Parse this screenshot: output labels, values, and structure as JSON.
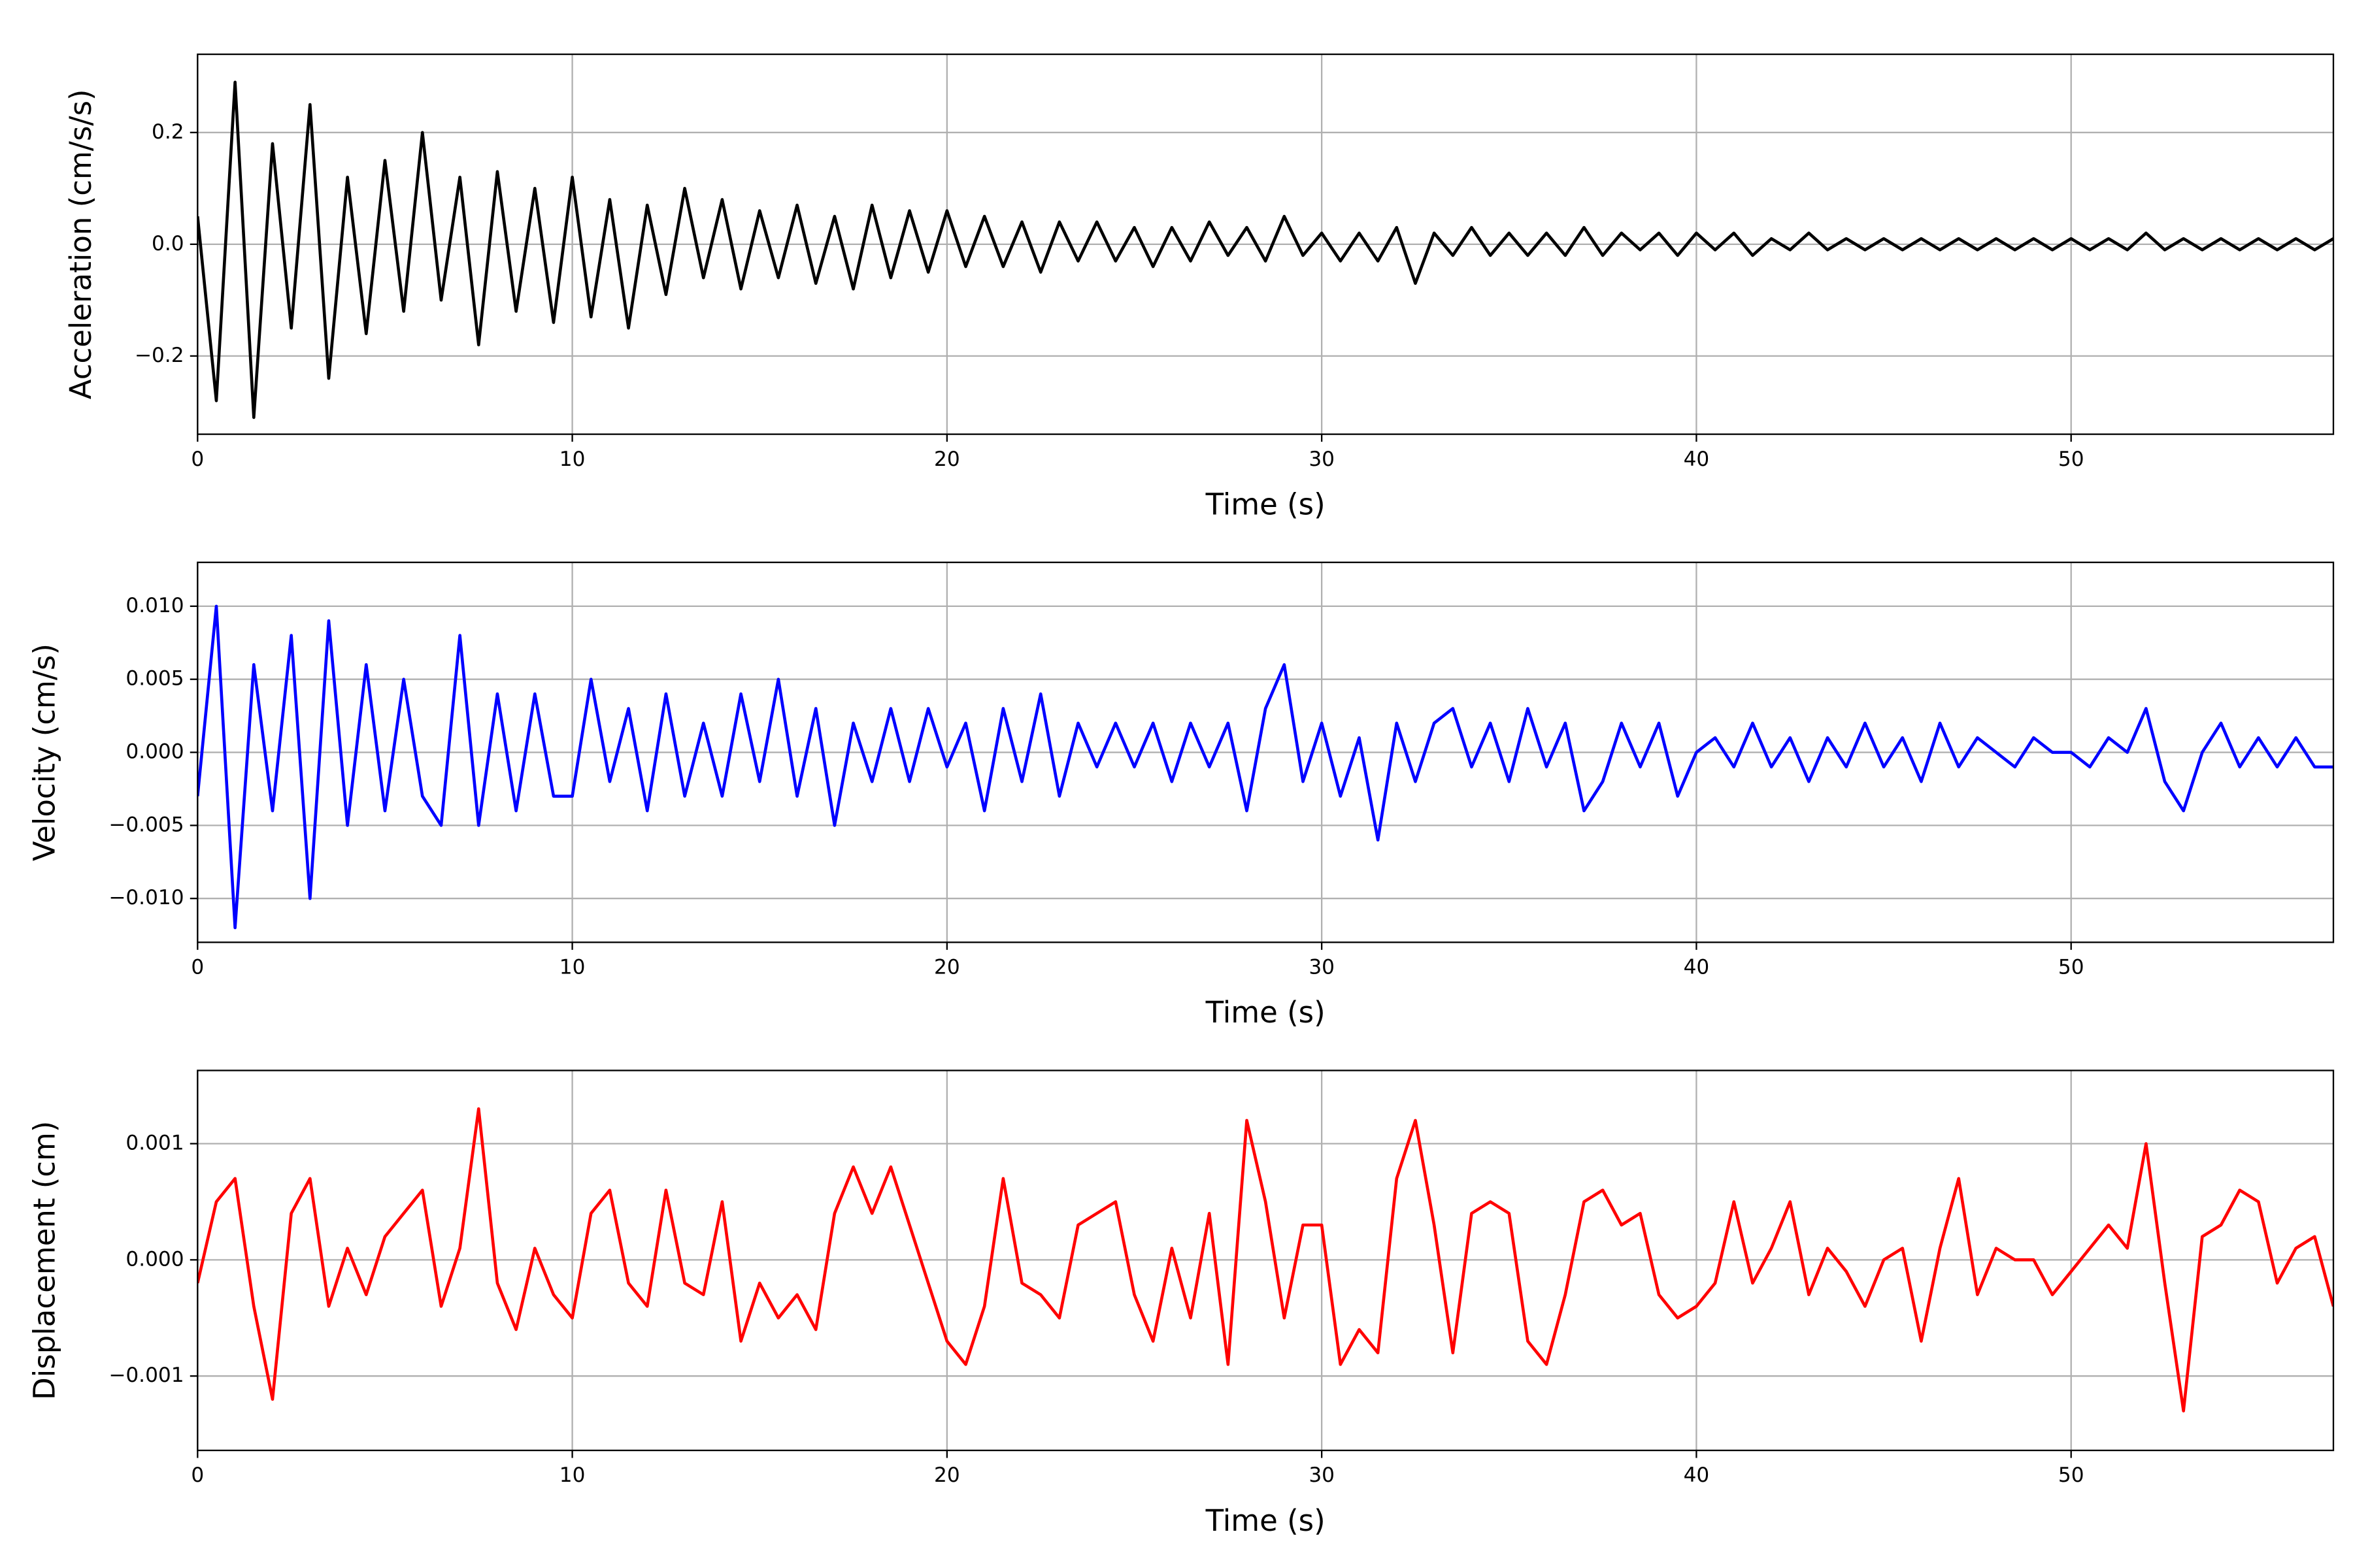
{
  "chart_data": [
    {
      "type": "line",
      "color": "#000000",
      "xlabel": "Time (s)",
      "ylabel": "Acceleration (cm/s/s)",
      "grid": true,
      "xlim": [
        0,
        57
      ],
      "xticks": [
        0,
        10,
        20,
        30,
        40,
        50
      ],
      "ylim": [
        -0.34,
        0.34
      ],
      "yticks": [
        {
          "value": -0.2,
          "label": "−0.2"
        },
        {
          "value": 0,
          "label": "0.0"
        },
        0.2
      ],
      "x": [
        0,
        0.5,
        1,
        1.5,
        2,
        2.5,
        3,
        3.5,
        4,
        4.5,
        5,
        5.5,
        6,
        6.5,
        7,
        7.5,
        8,
        8.5,
        9,
        9.5,
        10,
        10.5,
        11,
        11.5,
        12,
        12.5,
        13,
        13.5,
        14,
        14.5,
        15,
        15.5,
        16,
        16.5,
        17,
        17.5,
        18,
        18.5,
        19,
        19.5,
        20,
        20.5,
        21,
        21.5,
        22,
        22.5,
        23,
        23.5,
        24,
        24.5,
        25,
        25.5,
        26,
        26.5,
        27,
        27.5,
        28,
        28.5,
        29,
        29.5,
        30,
        30.5,
        31,
        31.5,
        32,
        32.5,
        33,
        33.5,
        34,
        34.5,
        35,
        35.5,
        36,
        36.5,
        37,
        37.5,
        38,
        38.5,
        39,
        39.5,
        40,
        40.5,
        41,
        41.5,
        42,
        42.5,
        43,
        43.5,
        44,
        44.5,
        45,
        45.5,
        46,
        46.5,
        47,
        47.5,
        48,
        48.5,
        49,
        49.5,
        50,
        50.5,
        51,
        51.5,
        52,
        52.5,
        53,
        53.5,
        54,
        54.5,
        55,
        55.5,
        56,
        56.5,
        57
      ],
      "values": [
        0.05,
        -0.28,
        0.29,
        -0.31,
        0.18,
        -0.15,
        0.25,
        -0.24,
        0.12,
        -0.16,
        0.15,
        -0.12,
        0.2,
        -0.1,
        0.12,
        -0.18,
        0.13,
        -0.12,
        0.1,
        -0.14,
        0.12,
        -0.13,
        0.08,
        -0.15,
        0.07,
        -0.09,
        0.1,
        -0.06,
        0.08,
        -0.08,
        0.06,
        -0.06,
        0.07,
        -0.07,
        0.05,
        -0.08,
        0.07,
        -0.06,
        0.06,
        -0.05,
        0.06,
        -0.04,
        0.05,
        -0.04,
        0.04,
        -0.05,
        0.04,
        -0.03,
        0.04,
        -0.03,
        0.03,
        -0.04,
        0.03,
        -0.03,
        0.04,
        -0.02,
        0.03,
        -0.03,
        0.05,
        -0.02,
        0.02,
        -0.03,
        0.02,
        -0.03,
        0.03,
        -0.07,
        0.02,
        -0.02,
        0.03,
        -0.02,
        0.02,
        -0.02,
        0.02,
        -0.02,
        0.03,
        -0.02,
        0.02,
        -0.01,
        0.02,
        -0.02,
        0.02,
        -0.01,
        0.02,
        -0.02,
        0.01,
        -0.01,
        0.02,
        -0.01,
        0.01,
        -0.01,
        0.01,
        -0.01,
        0.01,
        -0.01,
        0.01,
        -0.01,
        0.01,
        -0.01,
        0.01,
        -0.01,
        0.01,
        -0.01,
        0.01,
        -0.01,
        0.02,
        -0.01,
        0.01,
        -0.01,
        0.01,
        -0.01,
        0.01,
        -0.01,
        0.01,
        -0.01,
        0.01
      ]
    },
    {
      "type": "line",
      "color": "#0000ff",
      "xlabel": "Time (s)",
      "ylabel": "Velocity (cm/s)",
      "grid": true,
      "xlim": [
        0,
        57
      ],
      "xticks": [
        0,
        10,
        20,
        30,
        40,
        50
      ],
      "ylim": [
        -0.013,
        0.013
      ],
      "yticks": [
        {
          "value": -0.01,
          "label": "−0.010"
        },
        {
          "value": -0.005,
          "label": "−0.005"
        },
        {
          "value": 0,
          "label": "0.000"
        },
        {
          "value": 0.005,
          "label": "0.005"
        },
        {
          "value": 0.01,
          "label": "0.010"
        }
      ],
      "x": [
        0,
        0.5,
        1,
        1.5,
        2,
        2.5,
        3,
        3.5,
        4,
        4.5,
        5,
        5.5,
        6,
        6.5,
        7,
        7.5,
        8,
        8.5,
        9,
        9.5,
        10,
        10.5,
        11,
        11.5,
        12,
        12.5,
        13,
        13.5,
        14,
        14.5,
        15,
        15.5,
        16,
        16.5,
        17,
        17.5,
        18,
        18.5,
        19,
        19.5,
        20,
        20.5,
        21,
        21.5,
        22,
        22.5,
        23,
        23.5,
        24,
        24.5,
        25,
        25.5,
        26,
        26.5,
        27,
        27.5,
        28,
        28.5,
        29,
        29.5,
        30,
        30.5,
        31,
        31.5,
        32,
        32.5,
        33,
        33.5,
        34,
        34.5,
        35,
        35.5,
        36,
        36.5,
        37,
        37.5,
        38,
        38.5,
        39,
        39.5,
        40,
        40.5,
        41,
        41.5,
        42,
        42.5,
        43,
        43.5,
        44,
        44.5,
        45,
        45.5,
        46,
        46.5,
        47,
        47.5,
        48,
        48.5,
        49,
        49.5,
        50,
        50.5,
        51,
        51.5,
        52,
        52.5,
        53,
        53.5,
        54,
        54.5,
        55,
        55.5,
        56,
        56.5,
        57
      ],
      "values": [
        -0.003,
        0.01,
        -0.012,
        0.006,
        -0.004,
        0.008,
        -0.01,
        0.009,
        -0.005,
        0.006,
        -0.004,
        0.005,
        -0.003,
        -0.005,
        0.008,
        -0.005,
        0.004,
        -0.004,
        0.004,
        -0.003,
        -0.003,
        0.005,
        -0.002,
        0.003,
        -0.004,
        0.004,
        -0.003,
        0.002,
        -0.003,
        0.004,
        -0.002,
        0.005,
        -0.003,
        0.003,
        -0.005,
        0.002,
        -0.002,
        0.003,
        -0.002,
        0.003,
        -0.001,
        0.002,
        -0.004,
        0.003,
        -0.002,
        0.004,
        -0.003,
        0.002,
        -0.001,
        0.002,
        -0.001,
        0.002,
        -0.002,
        0.002,
        -0.001,
        0.002,
        -0.004,
        0.003,
        0.006,
        -0.002,
        0.002,
        -0.003,
        0.001,
        -0.006,
        0.002,
        -0.002,
        0.002,
        0.003,
        -0.001,
        0.002,
        -0.002,
        0.003,
        -0.001,
        0.002,
        -0.004,
        -0.002,
        0.002,
        -0.001,
        0.002,
        -0.003,
        0,
        0.001,
        -0.001,
        0.002,
        -0.001,
        0.001,
        -0.002,
        0.001,
        -0.001,
        0.002,
        -0.001,
        0.001,
        -0.002,
        0.002,
        -0.001,
        0.001,
        0,
        -0.001,
        0.001,
        0,
        0,
        -0.001,
        0.001,
        0,
        0.003,
        -0.002,
        -0.004,
        0,
        0.002,
        -0.001,
        0.001,
        -0.001,
        0.001,
        -0.001,
        -0.001
      ]
    },
    {
      "type": "line",
      "color": "#ff0000",
      "xlabel": "Time (s)",
      "ylabel": "Displacement (cm)",
      "grid": true,
      "xlim": [
        0,
        57
      ],
      "xticks": [
        0,
        10,
        20,
        30,
        40,
        50
      ],
      "ylim": [
        -0.00164,
        0.00163
      ],
      "yticks": [
        {
          "value": -0.001,
          "label": "−0.001"
        },
        {
          "value": 0,
          "label": "0.000"
        },
        {
          "value": 0.001,
          "label": "0.001"
        }
      ],
      "x": [
        0,
        0.5,
        1,
        1.5,
        2,
        2.5,
        3,
        3.5,
        4,
        4.5,
        5,
        5.5,
        6,
        6.5,
        7,
        7.5,
        8,
        8.5,
        9,
        9.5,
        10,
        10.5,
        11,
        11.5,
        12,
        12.5,
        13,
        13.5,
        14,
        14.5,
        15,
        15.5,
        16,
        16.5,
        17,
        17.5,
        18,
        18.5,
        19,
        19.5,
        20,
        20.5,
        21,
        21.5,
        22,
        22.5,
        23,
        23.5,
        24,
        24.5,
        25,
        25.5,
        26,
        26.5,
        27,
        27.5,
        28,
        28.5,
        29,
        29.5,
        30,
        30.5,
        31,
        31.5,
        32,
        32.5,
        33,
        33.5,
        34,
        34.5,
        35,
        35.5,
        36,
        36.5,
        37,
        37.5,
        38,
        38.5,
        39,
        39.5,
        40,
        40.5,
        41,
        41.5,
        42,
        42.5,
        43,
        43.5,
        44,
        44.5,
        45,
        45.5,
        46,
        46.5,
        47,
        47.5,
        48,
        48.5,
        49,
        49.5,
        50,
        50.5,
        51,
        51.5,
        52,
        52.5,
        53,
        53.5,
        54,
        54.5,
        55,
        55.5,
        56,
        56.5,
        57
      ],
      "values": [
        -0.0002,
        0.0005,
        0.0007,
        -0.0004,
        -0.0012,
        0.0004,
        0.0007,
        -0.0004,
        0.0001,
        -0.0003,
        0.0002,
        0.0004,
        0.0006,
        -0.0004,
        0.0001,
        0.0013,
        -0.0002,
        -0.0006,
        0.0001,
        -0.0003,
        -0.0005,
        0.0004,
        0.0006,
        -0.0002,
        -0.0004,
        0.0006,
        -0.0002,
        -0.0003,
        0.0005,
        -0.0007,
        -0.0002,
        -0.0005,
        -0.0003,
        -0.0006,
        0.0004,
        0.0008,
        0.0004,
        0.0008,
        0.0003,
        -0.0002,
        -0.0007,
        -0.0009,
        -0.0004,
        0.0007,
        -0.0002,
        -0.0003,
        -0.0005,
        0.0003,
        0.0004,
        0.0005,
        -0.0003,
        -0.0007,
        0.0001,
        -0.0005,
        0.0004,
        -0.0009,
        0.0012,
        0.0005,
        -0.0005,
        0.0003,
        0.0003,
        -0.0009,
        -0.0006,
        -0.0008,
        0.0007,
        0.0012,
        0.0003,
        -0.0008,
        0.0004,
        0.0005,
        0.0004,
        -0.0007,
        -0.0009,
        -0.0003,
        0.0005,
        0.0006,
        0.0003,
        0.0004,
        -0.0003,
        -0.0005,
        -0.0004,
        -0.0002,
        0.0005,
        -0.0002,
        0.0001,
        0.0005,
        -0.0003,
        0.0001,
        -0.0001,
        -0.0004,
        0,
        0.0001,
        -0.0007,
        0.0001,
        0.0007,
        -0.0003,
        0.0001,
        0,
        0,
        -0.0003,
        -0.0001,
        0.0001,
        0.0003,
        0.0001,
        0.001,
        -0.0002,
        -0.0013,
        0.0002,
        0.0003,
        0.0006,
        0.0005,
        -0.0002,
        0.0001,
        0.0002,
        -0.0004
      ]
    }
  ]
}
